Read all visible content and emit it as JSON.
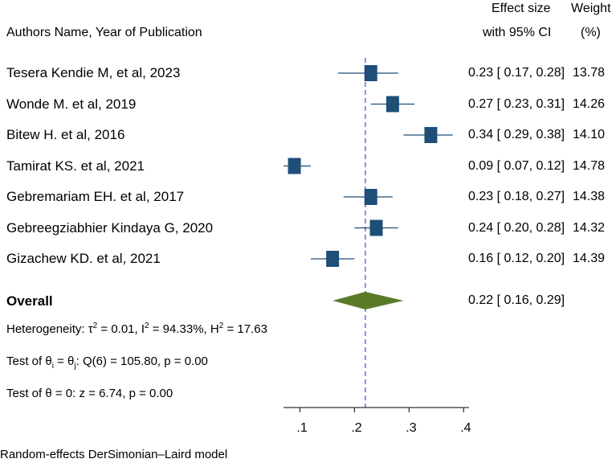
{
  "header": {
    "authors": "Authors Name, Year of Publication",
    "effect_size_line1": "Effect size",
    "effect_size_line2": "with 95% CI",
    "weight_line1": "Weight",
    "weight_line2": "(%)"
  },
  "stats": {
    "heterogeneity": "Heterogeneity: τ² = 0.01, I² = 94.33%, H² = 17.63",
    "het_prefix": "Heterogeneity: τ",
    "het_tau_exp": "2",
    "het_tau_val": " = 0.01, I",
    "het_i_exp": "2",
    "het_i_val": " = 94.33%, H",
    "het_h_exp": "2",
    "het_h_val": " = 17.63",
    "q_test": "Test of θᵢ = θⱼ: Q(6) = 105.80, p = 0.00",
    "q_prefix": "Test of θ",
    "q_sub_i": "i",
    "q_mid": " = θ",
    "q_sub_j": "j",
    "q_rest": ": Q(6) = 105.80, p = 0.00",
    "z_test": "Test of θ = 0: z = 6.74, p = 0.00"
  },
  "footer": {
    "model": "Random-effects DerSimonian–Laird model"
  },
  "colors": {
    "marker": "#1f4e79",
    "diamond": "#5a7a2a",
    "ref_line": "#6a6adf",
    "ci_line": "#1f4e79"
  },
  "chart_data": {
    "type": "forest",
    "title": "",
    "xlabel": "",
    "xlim": [
      0.07,
      0.41
    ],
    "xticks": [
      0.1,
      0.2,
      0.3,
      0.4
    ],
    "xtick_labels": [
      ".1",
      ".2",
      ".3",
      ".4"
    ],
    "reference_line": 0.22,
    "studies": [
      {
        "label": "Tesera Kendie M, et al, 2023",
        "es": 0.23,
        "lo": 0.17,
        "hi": 0.28,
        "ci_text": "0.23 [ 0.17,  0.28]",
        "weight": "13.78"
      },
      {
        "label": "Wonde M. et al, 2019",
        "es": 0.27,
        "lo": 0.23,
        "hi": 0.31,
        "ci_text": "0.27 [ 0.23,  0.31]",
        "weight": "14.26"
      },
      {
        "label": "Bitew H. et al, 2016",
        "es": 0.34,
        "lo": 0.29,
        "hi": 0.38,
        "ci_text": "0.34 [ 0.29,  0.38]",
        "weight": "14.10"
      },
      {
        "label": "Tamirat KS. et al, 2021",
        "es": 0.09,
        "lo": 0.07,
        "hi": 0.12,
        "ci_text": "0.09 [ 0.07,  0.12]",
        "weight": "14.78"
      },
      {
        "label": "Gebremariam EH. et al, 2017",
        "es": 0.23,
        "lo": 0.18,
        "hi": 0.27,
        "ci_text": "0.23 [ 0.18,  0.27]",
        "weight": "14.38"
      },
      {
        "label": "Gebreegziabhier Kindaya G, 2020",
        "es": 0.24,
        "lo": 0.2,
        "hi": 0.28,
        "ci_text": "0.24 [ 0.20,  0.28]",
        "weight": "14.32"
      },
      {
        "label": "Gizachew KD. et al, 2021",
        "es": 0.16,
        "lo": 0.12,
        "hi": 0.2,
        "ci_text": "0.16 [ 0.12,  0.20]",
        "weight": "14.39"
      }
    ],
    "overall": {
      "label": "Overall",
      "es": 0.22,
      "lo": 0.16,
      "hi": 0.29,
      "ci_text": "0.22 [ 0.16,  0.29]"
    }
  }
}
